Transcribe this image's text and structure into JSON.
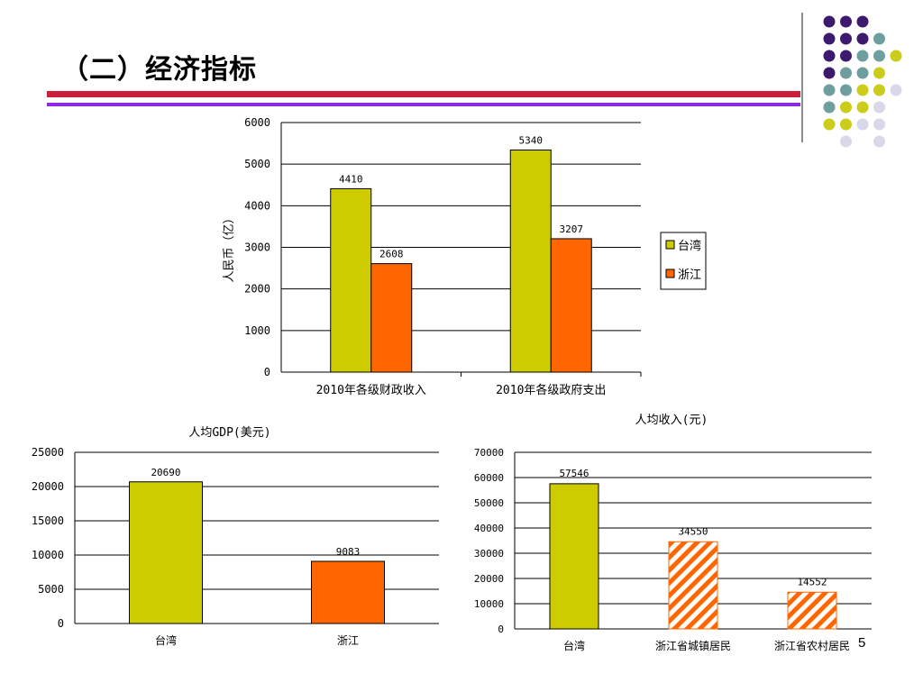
{
  "slide": {
    "title": "（二）经济指标",
    "page_number": "5"
  },
  "colors": {
    "taiwan": "#cccc00",
    "zhejiang": "#ff6600",
    "rule_red": "#cc1f3c",
    "rule_purple": "#8a2be2",
    "dot_purple": "#3d1a6e",
    "dot_teal": "#6e9e9e",
    "dot_yellow": "#cccc1a",
    "dot_lavender": "#d8d8e8"
  },
  "decor_dots": [
    [
      "purple",
      "purple",
      "purple",
      "",
      ""
    ],
    [
      "purple",
      "purple",
      "purple",
      "teal",
      ""
    ],
    [
      "purple",
      "purple",
      "teal",
      "teal",
      "yellow"
    ],
    [
      "purple",
      "teal",
      "teal",
      "yellow",
      ""
    ],
    [
      "teal",
      "teal",
      "yellow",
      "yellow",
      "lavender"
    ],
    [
      "teal",
      "yellow",
      "yellow",
      "lavender",
      ""
    ],
    [
      "yellow",
      "yellow",
      "lavender",
      "lavender",
      ""
    ],
    [
      "",
      "lavender",
      "",
      "lavender",
      ""
    ]
  ],
  "chart_data": [
    {
      "id": "fiscal",
      "type": "bar",
      "title": "",
      "xlabel": "",
      "ylabel": "人民币（亿）",
      "ylim": [
        0,
        6000
      ],
      "yticks": [
        0,
        1000,
        2000,
        3000,
        4000,
        5000,
        6000
      ],
      "categories": [
        "2010年各级财政收入",
        "2010年各级政府支出"
      ],
      "series": [
        {
          "name": "台湾",
          "values": [
            4410,
            5340
          ],
          "color_key": "taiwan"
        },
        {
          "name": "浙江",
          "values": [
            2608,
            3207
          ],
          "color_key": "zhejiang"
        }
      ],
      "legend": "right",
      "grid": true
    },
    {
      "id": "gdp",
      "type": "bar",
      "title": "人均GDP(美元)",
      "xlabel": "",
      "ylabel": "",
      "ylim": [
        0,
        25000
      ],
      "yticks": [
        0,
        5000,
        10000,
        15000,
        20000,
        25000
      ],
      "categories": [
        "台湾",
        "浙江"
      ],
      "values": [
        20690,
        9083
      ],
      "bar_styles": [
        "taiwan",
        "zhejiang"
      ],
      "grid": true
    },
    {
      "id": "income",
      "type": "bar",
      "title": "人均收入(元)",
      "xlabel": "",
      "ylabel": "",
      "ylim": [
        0,
        70000
      ],
      "yticks": [
        0,
        10000,
        20000,
        30000,
        40000,
        50000,
        60000,
        70000
      ],
      "categories": [
        "台湾",
        "浙江省城镇居民",
        "浙江省农村居民"
      ],
      "values": [
        57546,
        34550,
        14552
      ],
      "bar_styles": [
        "taiwan",
        "hatch",
        "hatch"
      ],
      "grid": true
    }
  ]
}
